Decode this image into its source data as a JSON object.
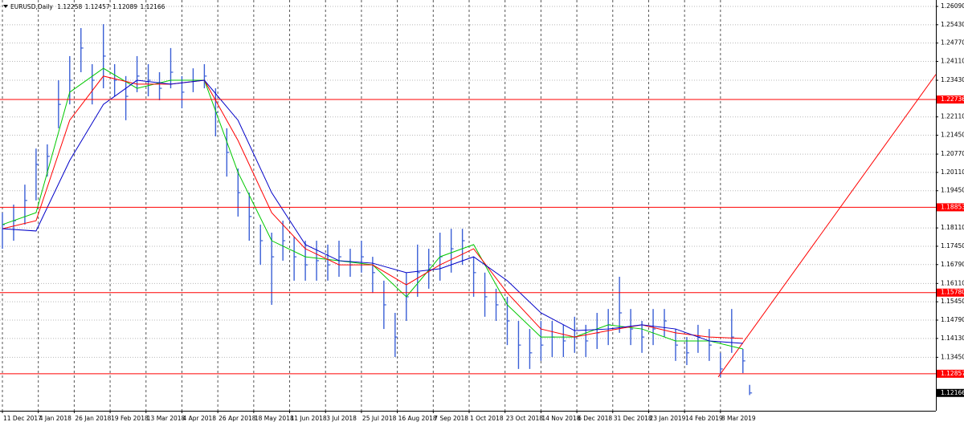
{
  "chart_data": {
    "type": "ohlc",
    "symbol": "EURUSD,Daily",
    "last_ohlc": [
      1.12258,
      1.12457,
      1.12089,
      1.12166
    ],
    "bar_color": "#3a5fd6",
    "xlim": [
      0,
      416
    ],
    "ylim": [
      1.11524,
      1.26321
    ],
    "grid": true,
    "xticks": [
      {
        "value": 0,
        "label": "11 Dec 2017"
      },
      {
        "value": 16,
        "label": "4 Jan 2018"
      },
      {
        "value": 32,
        "label": "26 Jan 2018"
      },
      {
        "value": 48,
        "label": "19 Feb 2018"
      },
      {
        "value": 64,
        "label": "13 Mar 2018"
      },
      {
        "value": 80,
        "label": "4 Apr 2018"
      },
      {
        "value": 96,
        "label": "26 Apr 2018"
      },
      {
        "value": 112,
        "label": "18 May 2018"
      },
      {
        "value": 128,
        "label": "11 Jun 2018"
      },
      {
        "value": 144,
        "label": "3 Jul 2018"
      },
      {
        "value": 160,
        "label": "25 Jul 2018"
      },
      {
        "value": 176,
        "label": "16 Aug 2018"
      },
      {
        "value": 192,
        "label": "7 Sep 2018"
      },
      {
        "value": 208,
        "label": "1 Oct 2018"
      },
      {
        "value": 224,
        "label": "23 Oct 2018"
      },
      {
        "value": 240,
        "label": "14 Nov 2018"
      },
      {
        "value": 256,
        "label": "6 Dec 2018"
      },
      {
        "value": 272,
        "label": "31 Dec 2018"
      },
      {
        "value": 288,
        "label": "23 Jan 2019"
      },
      {
        "value": 304,
        "label": "14 Feb 2019"
      },
      {
        "value": 320,
        "label": "8 Mar 2019"
      }
    ],
    "yticks": [
      {
        "value": 1.2609,
        "label": "1.26090"
      },
      {
        "value": 1.2543,
        "label": "1.25430"
      },
      {
        "value": 1.2477,
        "label": "1.24770"
      },
      {
        "value": 1.2411,
        "label": "1.24110"
      },
      {
        "value": 1.2343,
        "label": "1.23430"
      },
      {
        "value": 1.2211,
        "label": "1.22110"
      },
      {
        "value": 1.2145,
        "label": "1.21450"
      },
      {
        "value": 1.2077,
        "label": "1.20770"
      },
      {
        "value": 1.2011,
        "label": "1.20110"
      },
      {
        "value": 1.1945,
        "label": "1.19450"
      },
      {
        "value": 1.1811,
        "label": "1.18110"
      },
      {
        "value": 1.1745,
        "label": "1.17450"
      },
      {
        "value": 1.1679,
        "label": "1.16790"
      },
      {
        "value": 1.1611,
        "label": "1.16110"
      },
      {
        "value": 1.1545,
        "label": "1.15450"
      },
      {
        "value": 1.1479,
        "label": "1.14790"
      },
      {
        "value": 1.1413,
        "label": "1.14130"
      },
      {
        "value": 1.1345,
        "label": "1.13450"
      }
    ],
    "levels": [
      {
        "value": 1.22736,
        "color": "#ff0000"
      },
      {
        "value": 1.18853,
        "color": "#ff0000"
      },
      {
        "value": 1.1578,
        "label": "1.15780",
        "color": "#ff0000"
      },
      {
        "value": 1.12857,
        "color": "#ff0000"
      }
    ],
    "current_price": 1.12166,
    "trendline": {
      "color": "#ff0000",
      "x": [
        319,
        416
      ],
      "y": [
        1.1274,
        1.2364
      ]
    },
    "bars": {
      "x": [
        0,
        5,
        10,
        15,
        20,
        25,
        30,
        35,
        40,
        45,
        50,
        55,
        60,
        65,
        70,
        75,
        80,
        85,
        90,
        95,
        100,
        105,
        110,
        115,
        120,
        125,
        130,
        135,
        140,
        145,
        150,
        155,
        160,
        165,
        170,
        175,
        180,
        185,
        190,
        195,
        200,
        205,
        210,
        215,
        220,
        225,
        230,
        235,
        240,
        245,
        250,
        255,
        260,
        265,
        270,
        275,
        280,
        285,
        290,
        295,
        300,
        305,
        310,
        315,
        320,
        325,
        330,
        333
      ],
      "high": [
        1.1866,
        1.1895,
        1.1967,
        1.2097,
        1.2112,
        1.2343,
        1.243,
        1.2531,
        1.2401,
        1.2545,
        1.2401,
        1.2358,
        1.243,
        1.2401,
        1.2372,
        1.2459,
        1.2358,
        1.2386,
        1.2401,
        1.2314,
        1.217,
        1.2025,
        1.1938,
        1.1823,
        1.1794,
        1.1837,
        1.1779,
        1.1765,
        1.1765,
        1.1751,
        1.1765,
        1.1736,
        1.1765,
        1.1707,
        1.1621,
        1.1505,
        1.165,
        1.1751,
        1.1736,
        1.1794,
        1.1808,
        1.1808,
        1.1707,
        1.165,
        1.1592,
        1.1563,
        1.1476,
        1.1447,
        1.1476,
        1.1476,
        1.1462,
        1.1491,
        1.1462,
        1.1505,
        1.1519,
        1.1635,
        1.1519,
        1.1476,
        1.1519,
        1.1519,
        1.1447,
        1.1418,
        1.1462,
        1.1447,
        1.1361,
        1.1519,
        1.1375,
        1.12457
      ],
      "low": [
        1.1736,
        1.1765,
        1.1823,
        1.191,
        1.1996,
        1.217,
        1.2256,
        1.2372,
        1.2256,
        1.2314,
        1.2285,
        1.2199,
        1.23,
        1.2285,
        1.2271,
        1.2314,
        1.2242,
        1.23,
        1.2314,
        1.2141,
        1.1996,
        1.1852,
        1.1765,
        1.1678,
        1.1534,
        1.1693,
        1.1621,
        1.1621,
        1.1621,
        1.1621,
        1.1635,
        1.1635,
        1.165,
        1.1577,
        1.1447,
        1.1346,
        1.1476,
        1.1563,
        1.1592,
        1.1621,
        1.165,
        1.1678,
        1.1563,
        1.1491,
        1.1476,
        1.1389,
        1.1303,
        1.1303,
        1.1332,
        1.1346,
        1.1346,
        1.1361,
        1.1346,
        1.1375,
        1.1389,
        1.1433,
        1.1389,
        1.1361,
        1.1389,
        1.1418,
        1.1332,
        1.1317,
        1.1361,
        1.1332,
        1.1274,
        1.1361,
        1.1288,
        1.12089
      ],
      "close": [
        1.1823,
        1.1837,
        1.191,
        1.204,
        1.2069,
        1.2256,
        1.2343,
        1.2459,
        1.2343,
        1.243,
        1.2343,
        1.2285,
        1.2358,
        1.2343,
        1.2314,
        1.2372,
        1.23,
        1.2343,
        1.2358,
        1.2227,
        1.2083,
        1.1938,
        1.1852,
        1.1765,
        1.1707,
        1.1765,
        1.1707,
        1.1678,
        1.1693,
        1.1678,
        1.1707,
        1.1678,
        1.1707,
        1.165,
        1.1534,
        1.1418,
        1.1563,
        1.165,
        1.1678,
        1.1707,
        1.1736,
        1.1765,
        1.165,
        1.1563,
        1.1534,
        1.1476,
        1.1389,
        1.1361,
        1.1389,
        1.1418,
        1.1404,
        1.1418,
        1.1404,
        1.1433,
        1.1462,
        1.1505,
        1.1447,
        1.1418,
        1.1447,
        1.1476,
        1.1389,
        1.1361,
        1.1418,
        1.1389,
        1.1303,
        1.1418,
        1.1332,
        1.12166
      ]
    },
    "ma_x": [
      0,
      15,
      30,
      45,
      60,
      75,
      90,
      105,
      120,
      135,
      150,
      165,
      180,
      195,
      210,
      225,
      240,
      255,
      270,
      285,
      300,
      315,
      330
    ],
    "moving_averages": [
      {
        "color": "#00c800",
        "values": [
          1.1823,
          1.1866,
          1.23,
          1.2386,
          1.2314,
          1.2343,
          1.2343,
          1.2011,
          1.1765,
          1.1707,
          1.1693,
          1.1678,
          1.1563,
          1.1707,
          1.1751,
          1.1534,
          1.1418,
          1.1418,
          1.1462,
          1.1447,
          1.1404,
          1.1404,
          1.1375
        ]
      },
      {
        "color": "#ff0000",
        "values": [
          1.1808,
          1.1837,
          1.2199,
          1.2358,
          1.2329,
          1.2329,
          1.2343,
          1.2126,
          1.1866,
          1.1736,
          1.1678,
          1.1678,
          1.1606,
          1.1678,
          1.1736,
          1.1577,
          1.1447,
          1.1418,
          1.1441,
          1.1462,
          1.1433,
          1.1418,
          1.1413
        ]
      },
      {
        "color": "#0000c8",
        "values": [
          1.1808,
          1.18,
          1.2054,
          1.2256,
          1.2343,
          1.2329,
          1.2343,
          1.2199,
          1.1938,
          1.1751,
          1.1693,
          1.1684,
          1.165,
          1.1664,
          1.1707,
          1.1621,
          1.1505,
          1.1441,
          1.1447,
          1.1462,
          1.1447,
          1.1404,
          1.1395
        ]
      }
    ]
  }
}
